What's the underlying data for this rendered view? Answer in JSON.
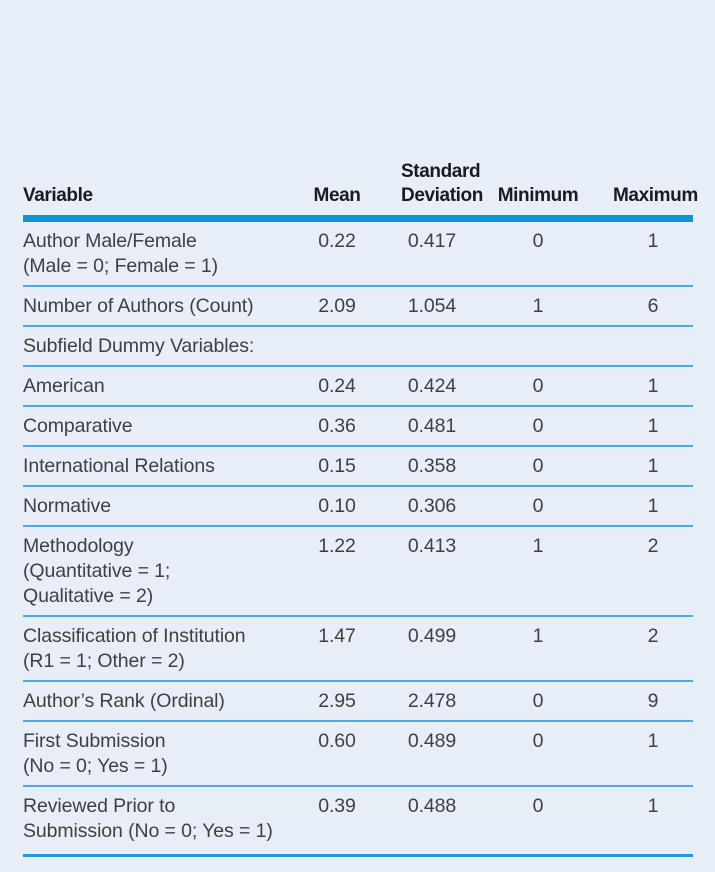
{
  "colors": {
    "page_background": "#e7eef7",
    "header_rule": "#0d95d2",
    "row_separator": "#4aabdd",
    "bottom_rule": "#2099d6",
    "header_text": "#1b1b1d",
    "body_text": "#404042"
  },
  "table": {
    "columns": {
      "variable": "Variable",
      "mean": "Mean",
      "sd": "Standard\nDeviation",
      "min": "Minimum",
      "max": "Maximum"
    },
    "rows": [
      {
        "variable": "Author Male/Female\n(Male = 0; Female = 1)",
        "mean": "0.22",
        "sd": "0.417",
        "min": "0",
        "max": "1"
      },
      {
        "variable": "Number of Authors (Count)",
        "mean": "2.09",
        "sd": "1.054",
        "min": "1",
        "max": "6"
      },
      {
        "variable": "Subfield Dummy Variables:",
        "mean": "",
        "sd": "",
        "min": "",
        "max": ""
      },
      {
        "variable": "American",
        "mean": "0.24",
        "sd": "0.424",
        "min": "0",
        "max": "1"
      },
      {
        "variable": "Comparative",
        "mean": "0.36",
        "sd": "0.481",
        "min": "0",
        "max": "1"
      },
      {
        "variable": "International Relations",
        "mean": "0.15",
        "sd": "0.358",
        "min": "0",
        "max": "1"
      },
      {
        "variable": "Normative",
        "mean": "0.10",
        "sd": "0.306",
        "min": "0",
        "max": "1"
      },
      {
        "variable": "Methodology\n(Quantitative = 1;\nQualitative = 2)",
        "mean": "1.22",
        "sd": "0.413",
        "min": "1",
        "max": "2"
      },
      {
        "variable": "Classification of Institution\n(R1 = 1; Other = 2)",
        "mean": "1.47",
        "sd": "0.499",
        "min": "1",
        "max": "2"
      },
      {
        "variable": "Author’s Rank (Ordinal)",
        "mean": "2.95",
        "sd": "2.478",
        "min": "0",
        "max": "9"
      },
      {
        "variable": "First Submission\n(No = 0; Yes = 1)",
        "mean": "0.60",
        "sd": "0.489",
        "min": "0",
        "max": "1"
      },
      {
        "variable": "Reviewed Prior to\nSubmission (No = 0; Yes = 1)",
        "mean": "0.39",
        "sd": "0.488",
        "min": "0",
        "max": "1"
      }
    ]
  }
}
